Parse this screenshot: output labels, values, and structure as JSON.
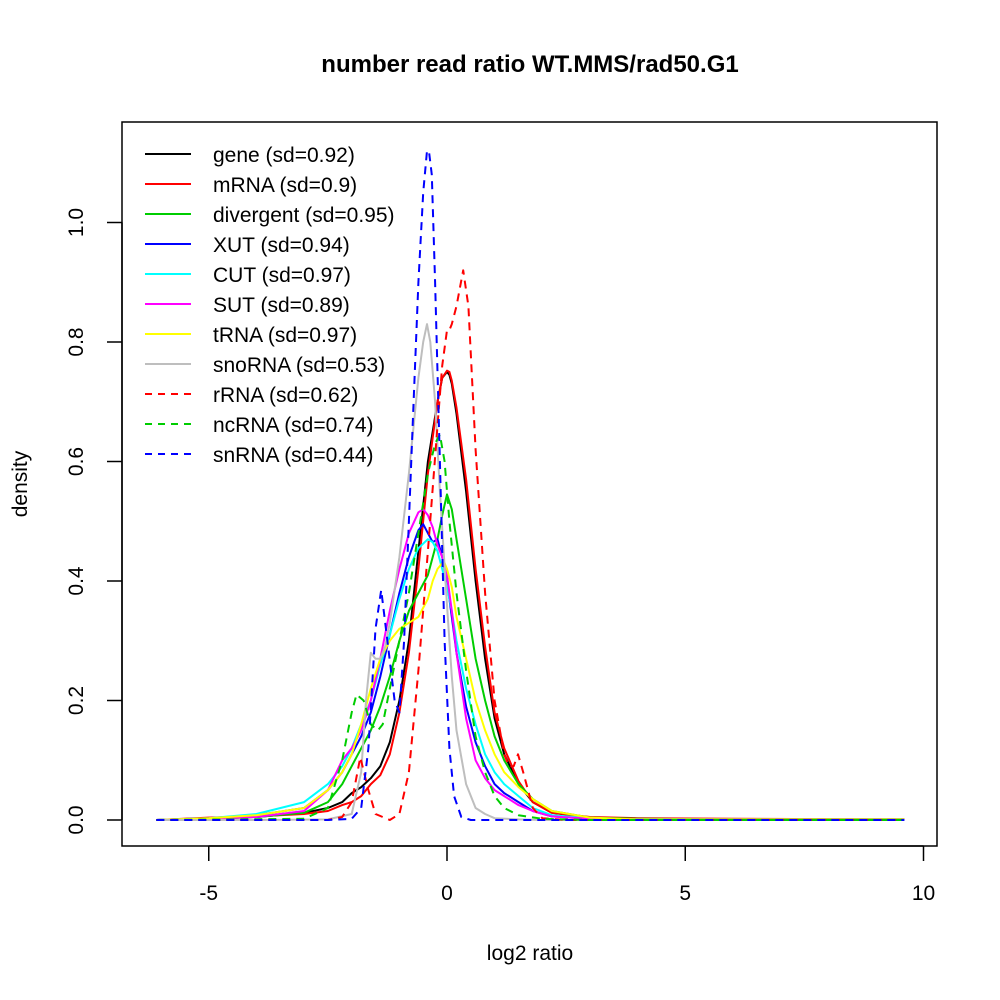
{
  "chart_data": {
    "type": "line",
    "title": "number read ratio WT.MMS/rad50.G1",
    "xlabel": "log2 ratio",
    "ylabel": "density",
    "xlim": [
      -6.6,
      10.3
    ],
    "ylim": [
      -0.045,
      1.17
    ],
    "xticks": [
      -5,
      0,
      5,
      10
    ],
    "xtick_labels": [
      "-5",
      "0",
      "5",
      "10"
    ],
    "yticks": [
      0.0,
      0.2,
      0.4,
      0.6,
      0.8,
      1.0
    ],
    "ytick_labels": [
      "0.0",
      "0.2",
      "0.4",
      "0.6",
      "0.8",
      "1.0"
    ],
    "grid": false,
    "legend_position": "top-left",
    "series": [
      {
        "name": "gene (sd=0.92)",
        "color": "#000000",
        "dash": "solid",
        "x": [
          -6.1,
          -5,
          -4,
          -3,
          -2.5,
          -2.2,
          -2,
          -1.8,
          -1.6,
          -1.4,
          -1.2,
          -1,
          -0.8,
          -0.6,
          -0.4,
          -0.2,
          -0.1,
          0,
          0.05,
          0.1,
          0.2,
          0.4,
          0.6,
          0.8,
          1,
          1.2,
          1.5,
          1.8,
          2.2,
          3,
          4,
          6,
          9.6
        ],
        "y": [
          0,
          0.002,
          0.005,
          0.012,
          0.02,
          0.03,
          0.045,
          0.055,
          0.07,
          0.09,
          0.13,
          0.2,
          0.3,
          0.45,
          0.6,
          0.7,
          0.74,
          0.75,
          0.745,
          0.73,
          0.68,
          0.55,
          0.4,
          0.27,
          0.17,
          0.11,
          0.06,
          0.03,
          0.012,
          0.004,
          0.002,
          0.001,
          0.001
        ]
      },
      {
        "name": "mRNA (sd=0.9)",
        "color": "#ff0000",
        "dash": "solid",
        "x": [
          -6.1,
          -5,
          -4,
          -3,
          -2.5,
          -2.2,
          -2,
          -1.8,
          -1.6,
          -1.4,
          -1.2,
          -1,
          -0.8,
          -0.6,
          -0.4,
          -0.2,
          -0.1,
          0,
          0.05,
          0.1,
          0.2,
          0.4,
          0.6,
          0.8,
          1,
          1.2,
          1.5,
          1.8,
          2.2,
          3,
          4,
          6,
          9.6
        ],
        "y": [
          0,
          0.004,
          0.006,
          0.01,
          0.015,
          0.025,
          0.03,
          0.04,
          0.06,
          0.075,
          0.11,
          0.18,
          0.28,
          0.42,
          0.58,
          0.7,
          0.74,
          0.752,
          0.75,
          0.735,
          0.69,
          0.57,
          0.42,
          0.29,
          0.18,
          0.12,
          0.065,
          0.03,
          0.012,
          0.005,
          0.003,
          0.002,
          0.001
        ]
      },
      {
        "name": "divergent (sd=0.95)",
        "color": "#00cd00",
        "dash": "solid",
        "x": [
          -6.1,
          -5,
          -4,
          -3,
          -2.5,
          -2.2,
          -2,
          -1.8,
          -1.6,
          -1.4,
          -1.2,
          -1,
          -0.8,
          -0.6,
          -0.4,
          -0.3,
          -0.2,
          -0.1,
          0,
          0.1,
          0.2,
          0.4,
          0.6,
          0.8,
          1,
          1.2,
          1.5,
          1.8,
          2.2,
          3,
          4,
          6,
          9.6
        ],
        "y": [
          0,
          0.002,
          0.005,
          0.012,
          0.03,
          0.06,
          0.09,
          0.12,
          0.15,
          0.19,
          0.24,
          0.3,
          0.35,
          0.38,
          0.41,
          0.44,
          0.47,
          0.51,
          0.545,
          0.52,
          0.47,
          0.37,
          0.27,
          0.2,
          0.14,
          0.1,
          0.06,
          0.035,
          0.015,
          0.004,
          0.002,
          0.001,
          0.001
        ]
      },
      {
        "name": "XUT (sd=0.94)",
        "color": "#0000ff",
        "dash": "solid",
        "x": [
          -6.1,
          -5,
          -4,
          -3,
          -2.5,
          -2.2,
          -2,
          -1.8,
          -1.6,
          -1.4,
          -1.2,
          -1,
          -0.8,
          -0.6,
          -0.5,
          -0.4,
          -0.3,
          -0.2,
          -0.1,
          0,
          0.1,
          0.2,
          0.4,
          0.6,
          0.8,
          1,
          1.2,
          1.5,
          1.8,
          2.2,
          3,
          4,
          6,
          9.6
        ],
        "y": [
          0,
          0.003,
          0.008,
          0.02,
          0.05,
          0.08,
          0.11,
          0.14,
          0.18,
          0.24,
          0.31,
          0.38,
          0.44,
          0.485,
          0.495,
          0.48,
          0.465,
          0.47,
          0.44,
          0.4,
          0.34,
          0.28,
          0.19,
          0.13,
          0.09,
          0.06,
          0.045,
          0.03,
          0.015,
          0.006,
          0.002,
          0.001,
          0.001,
          0.001
        ]
      },
      {
        "name": "CUT (sd=0.97)",
        "color": "#00ffff",
        "dash": "solid",
        "x": [
          -6.1,
          -5,
          -4,
          -3,
          -2.5,
          -2.2,
          -2,
          -1.8,
          -1.6,
          -1.4,
          -1.2,
          -1,
          -0.8,
          -0.6,
          -0.4,
          -0.3,
          -0.2,
          -0.1,
          0,
          0.1,
          0.2,
          0.4,
          0.6,
          0.8,
          1,
          1.2,
          1.5,
          1.8,
          2.2,
          3,
          4,
          6,
          9.6
        ],
        "y": [
          0,
          0.003,
          0.01,
          0.03,
          0.06,
          0.09,
          0.12,
          0.16,
          0.2,
          0.26,
          0.31,
          0.37,
          0.42,
          0.455,
          0.47,
          0.465,
          0.45,
          0.42,
          0.39,
          0.35,
          0.3,
          0.22,
          0.16,
          0.11,
          0.08,
          0.06,
          0.04,
          0.02,
          0.008,
          0.003,
          0.001,
          0.001,
          0.001
        ]
      },
      {
        "name": "SUT (sd=0.89)",
        "color": "#ff00ff",
        "dash": "solid",
        "x": [
          -6.1,
          -5,
          -4,
          -3,
          -2.5,
          -2.2,
          -2,
          -1.8,
          -1.6,
          -1.4,
          -1.2,
          -1,
          -0.8,
          -0.6,
          -0.5,
          -0.4,
          -0.3,
          -0.2,
          -0.1,
          0,
          0.1,
          0.2,
          0.4,
          0.6,
          0.8,
          1,
          1.2,
          1.5,
          1.8,
          2.2,
          3,
          4,
          6,
          9.6
        ],
        "y": [
          0,
          0.002,
          0.005,
          0.015,
          0.05,
          0.1,
          0.12,
          0.15,
          0.2,
          0.27,
          0.35,
          0.42,
          0.48,
          0.515,
          0.52,
          0.51,
          0.49,
          0.46,
          0.44,
          0.41,
          0.35,
          0.28,
          0.17,
          0.1,
          0.07,
          0.05,
          0.04,
          0.025,
          0.015,
          0.006,
          0.002,
          0.001,
          0.001,
          0.001
        ]
      },
      {
        "name": "tRNA (sd=0.97)",
        "color": "#ffff00",
        "dash": "solid",
        "x": [
          -6.1,
          -5,
          -4,
          -3,
          -2.5,
          -2.2,
          -2,
          -1.8,
          -1.6,
          -1.4,
          -1.2,
          -1,
          -0.8,
          -0.6,
          -0.4,
          -0.3,
          -0.2,
          -0.1,
          -0.05,
          0,
          0.1,
          0.2,
          0.4,
          0.6,
          0.8,
          1,
          1.2,
          1.5,
          1.8,
          2.2,
          3,
          4,
          6,
          9.6
        ],
        "y": [
          0,
          0.003,
          0.008,
          0.02,
          0.05,
          0.08,
          0.11,
          0.16,
          0.22,
          0.27,
          0.3,
          0.32,
          0.33,
          0.34,
          0.37,
          0.4,
          0.42,
          0.43,
          0.43,
          0.42,
          0.39,
          0.34,
          0.27,
          0.2,
          0.15,
          0.11,
          0.08,
          0.055,
          0.035,
          0.015,
          0.004,
          0.001,
          0.001,
          0.001
        ]
      },
      {
        "name": "snoRNA (sd=0.53)",
        "color": "#bebebe",
        "dash": "solid",
        "x": [
          -6.1,
          -4,
          -2.5,
          -2.0,
          -1.8,
          -1.7,
          -1.6,
          -1.5,
          -1.4,
          -1.3,
          -1.2,
          -1.0,
          -0.8,
          -0.6,
          -0.5,
          -0.42,
          -0.35,
          -0.25,
          -0.15,
          0,
          0.1,
          0.2,
          0.4,
          0.6,
          0.8,
          1,
          1.5,
          2,
          3,
          6,
          9.6
        ],
        "y": [
          0,
          0,
          0.001,
          0.01,
          0.08,
          0.2,
          0.28,
          0.27,
          0.27,
          0.29,
          0.33,
          0.44,
          0.58,
          0.74,
          0.8,
          0.83,
          0.8,
          0.7,
          0.55,
          0.36,
          0.24,
          0.15,
          0.06,
          0.02,
          0.01,
          0.003,
          0.001,
          0,
          0,
          0,
          0
        ]
      },
      {
        "name": "rRNA (sd=0.62)",
        "color": "#ff0000",
        "dash": "dashed",
        "x": [
          -6.1,
          -2.5,
          -2.2,
          -2.0,
          -1.82,
          -1.65,
          -1.5,
          -1.2,
          -1.0,
          -0.8,
          -0.6,
          -0.4,
          -0.2,
          -0.1,
          0,
          0.05,
          0.1,
          0.2,
          0.34,
          0.45,
          0.6,
          0.8,
          1.0,
          1.2,
          1.3,
          1.4,
          1.49,
          1.6,
          1.8,
          2.0,
          2.5,
          6,
          9.6
        ],
        "y": [
          0,
          0,
          0.005,
          0.03,
          0.105,
          0.05,
          0.01,
          0,
          0.01,
          0.08,
          0.25,
          0.45,
          0.66,
          0.76,
          0.82,
          0.82,
          0.83,
          0.86,
          0.92,
          0.86,
          0.62,
          0.38,
          0.2,
          0.11,
          0.09,
          0.09,
          0.11,
          0.08,
          0.02,
          0.003,
          0,
          0,
          0
        ]
      },
      {
        "name": "ncRNA (sd=0.74)",
        "color": "#00cd00",
        "dash": "dashed",
        "x": [
          -6.1,
          -3,
          -2.5,
          -2.2,
          -2.0,
          -1.9,
          -1.75,
          -1.6,
          -1.45,
          -1.35,
          -1.2,
          -1.0,
          -0.8,
          -0.6,
          -0.4,
          -0.25,
          -0.15,
          -0.05,
          0.05,
          0.2,
          0.4,
          0.6,
          0.8,
          1.0,
          1.2,
          1.5,
          2,
          3,
          6,
          9.6
        ],
        "y": [
          0,
          0.002,
          0.02,
          0.1,
          0.18,
          0.21,
          0.2,
          0.16,
          0.15,
          0.16,
          0.22,
          0.3,
          0.38,
          0.48,
          0.58,
          0.63,
          0.645,
          0.6,
          0.5,
          0.38,
          0.25,
          0.14,
          0.08,
          0.04,
          0.02,
          0.008,
          0.002,
          0,
          0,
          0
        ]
      },
      {
        "name": "snRNA (sd=0.44)",
        "color": "#0000ff",
        "dash": "dashed",
        "x": [
          -6.1,
          -2.5,
          -2.0,
          -1.8,
          -1.65,
          -1.5,
          -1.38,
          -1.25,
          -1.1,
          -1.0,
          -0.9,
          -0.8,
          -0.7,
          -0.6,
          -0.5,
          -0.42,
          -0.38,
          -0.32,
          -0.25,
          -0.15,
          -0.05,
          0.05,
          0.15,
          0.3,
          0.5,
          1,
          2,
          6,
          9.6
        ],
        "y": [
          0,
          0,
          0.002,
          0.02,
          0.12,
          0.32,
          0.385,
          0.3,
          0.2,
          0.18,
          0.3,
          0.5,
          0.7,
          0.9,
          1.05,
          1.12,
          1.12,
          1.08,
          0.9,
          0.6,
          0.3,
          0.12,
          0.04,
          0.005,
          0,
          0,
          0,
          0,
          0
        ]
      }
    ]
  }
}
